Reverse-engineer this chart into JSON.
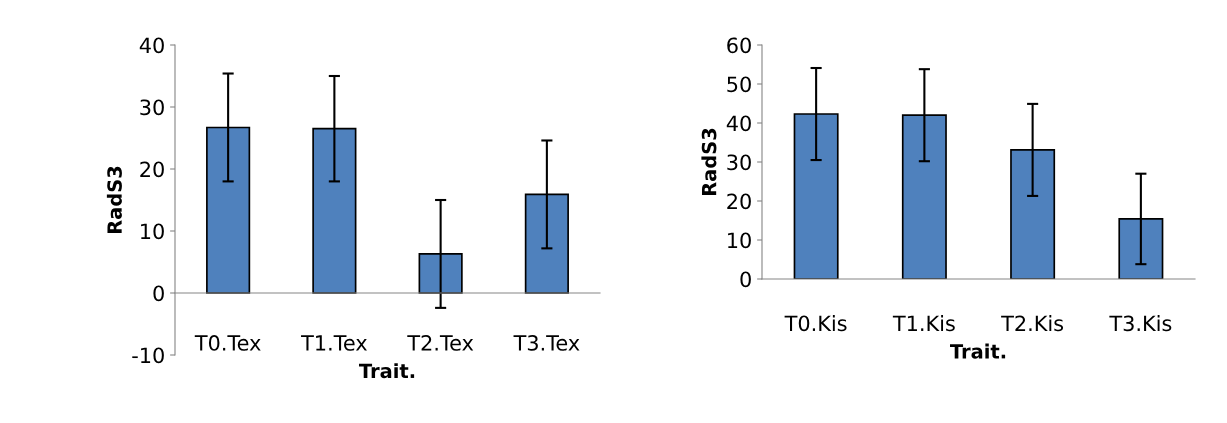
{
  "chart_data": [
    {
      "type": "bar",
      "xlabel": "Trait.",
      "ylabel": "RadS3",
      "categories": [
        "T0.Tex",
        "T1.Tex",
        "T2.Tex",
        "T3.Tex"
      ],
      "color": "#4f81bd",
      "values": [
        26.7,
        26.5,
        6.3,
        15.9
      ],
      "errors": [
        8.7,
        8.5,
        8.7,
        8.7
      ],
      "ylim": [
        -10,
        40
      ],
      "yticks": [
        -10,
        0,
        10,
        20,
        30,
        40
      ],
      "grid": false,
      "legend": false
    },
    {
      "type": "bar",
      "xlabel": "Trait.",
      "ylabel": "RadS3",
      "categories": [
        "T0.Kis",
        "T1.Kis",
        "T2.Kis",
        "T3.Kis"
      ],
      "color": "#4f81bd",
      "values": [
        42.3,
        42.0,
        33.1,
        15.4
      ],
      "errors": [
        11.8,
        11.8,
        11.8,
        11.6
      ],
      "ylim": [
        0,
        60
      ],
      "yticks": [
        0,
        10,
        20,
        30,
        40,
        50,
        60
      ],
      "grid": false,
      "legend": false
    }
  ]
}
